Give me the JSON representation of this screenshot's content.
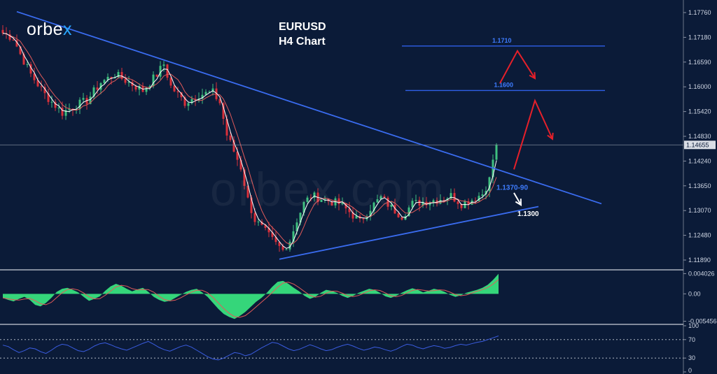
{
  "brand": {
    "logo_prefix": "orbe",
    "logo_suffix": "x",
    "watermark": "orbex.com"
  },
  "title": {
    "line1": "EURUSD",
    "line2": "H4 Chart"
  },
  "colors": {
    "background": "#0b1b38",
    "trendline": "#3a6cf0",
    "level_line": "#2f5fe8",
    "level_label": "#3e7cff",
    "arrow_red": "#e6202a",
    "arrow_white": "#ffffff",
    "candle_up": "#3fbf7f",
    "candle_down": "#d9303a",
    "ma_fast": "#ffffff",
    "ma_slow": "#e05a5a",
    "macd_hist": "#35d67a",
    "rsi_line": "#3a5ce0",
    "axis_text": "#cfd6e4",
    "current_price_line": "#7d8799"
  },
  "chart_data": [
    {
      "type": "line",
      "name": "price",
      "ylim": [
        1.116,
        1.181
      ],
      "y_ticks": [
        "1.17760",
        "1.17180",
        "1.16590",
        "1.16000",
        "1.15420",
        "1.14830",
        "1.14240",
        "1.13650",
        "1.13070",
        "1.12480",
        "1.11890"
      ],
      "current_price": "1.14655",
      "current_price_value": 1.14655,
      "x_points": 142,
      "close_anchors": [
        [
          0,
          1.1742
        ],
        [
          3,
          1.173
        ],
        [
          5,
          1.169
        ],
        [
          8,
          1.164
        ],
        [
          12,
          1.159
        ],
        [
          17,
          1.1545
        ],
        [
          20,
          1.156
        ],
        [
          24,
          1.1575
        ],
        [
          28,
          1.162
        ],
        [
          32,
          1.164
        ],
        [
          35,
          1.1625
        ],
        [
          40,
          1.16
        ],
        [
          44,
          1.164
        ],
        [
          46,
          1.1665
        ],
        [
          48,
          1.161
        ],
        [
          52,
          1.157
        ],
        [
          56,
          1.159
        ],
        [
          60,
          1.1595
        ],
        [
          62,
          1.157
        ],
        [
          64,
          1.149
        ],
        [
          68,
          1.141
        ],
        [
          70,
          1.133
        ],
        [
          72,
          1.128
        ],
        [
          75,
          1.125
        ],
        [
          78,
          1.122
        ],
        [
          80,
          1.1205
        ],
        [
          82,
          1.123
        ],
        [
          84,
          1.128
        ],
        [
          86,
          1.132
        ],
        [
          88,
          1.134
        ],
        [
          92,
          1.133
        ],
        [
          96,
          1.132
        ],
        [
          99,
          1.13
        ],
        [
          102,
          1.1275
        ],
        [
          105,
          1.131
        ],
        [
          108,
          1.1335
        ],
        [
          111,
          1.131
        ],
        [
          114,
          1.129
        ],
        [
          117,
          1.132
        ],
        [
          120,
          1.1325
        ],
        [
          124,
          1.133
        ],
        [
          128,
          1.134
        ],
        [
          131,
          1.132
        ],
        [
          134,
          1.133
        ],
        [
          137,
          1.1345
        ],
        [
          139,
          1.138
        ],
        [
          140,
          1.143
        ],
        [
          141,
          1.1466
        ]
      ],
      "trendlines": [
        {
          "points": [
            [
              4,
              1.1795
            ],
            [
              171,
              1.132
            ]
          ]
        },
        {
          "points": [
            [
              79,
              1.1183
            ],
            [
              153,
              1.1313
            ]
          ]
        }
      ],
      "levels": [
        {
          "label": "1.1710",
          "value": 1.171,
          "x_range": [
            114,
            172
          ]
        },
        {
          "label": "1.1600",
          "value": 1.16,
          "x_range": [
            115,
            172
          ]
        }
      ],
      "annotations": [
        {
          "label": "1.1370-90",
          "value": 1.136,
          "x": 141
        },
        {
          "label": "1.1300",
          "value": 1.1295,
          "x": 147
        }
      ],
      "arrows": [
        {
          "color": "red",
          "points": [
            [
              146,
              1.1405
            ],
            [
              152,
              1.1575
            ],
            [
              157,
              1.148
            ]
          ]
        },
        {
          "color": "red",
          "points": [
            [
              142,
              1.1618
            ],
            [
              147,
              1.1698
            ],
            [
              152,
              1.163
            ]
          ]
        },
        {
          "color": "white",
          "points": [
            [
              146,
              1.1347
            ],
            [
              148,
              1.1317
            ]
          ]
        }
      ]
    },
    {
      "type": "bar",
      "name": "macd",
      "y_ticks": [
        "0.004026",
        "0.00",
        "-0.005456"
      ],
      "ylim": [
        -0.0058,
        0.0045
      ],
      "values": [
        -0.0008,
        -0.0012,
        -0.0015,
        -0.001,
        -0.0006,
        -0.0012,
        -0.0022,
        -0.0025,
        -0.0018,
        -0.0008,
        0.0004,
        0.001,
        0.0012,
        0.0008,
        0.0003,
        -0.0006,
        -0.0014,
        -0.001,
        -0.0005,
        0.0006,
        0.0015,
        0.002,
        0.0016,
        0.001,
        0.0005,
        0.0009,
        0.0012,
        0.0004,
        -0.0006,
        -0.0012,
        -0.0016,
        -0.0014,
        -0.0008,
        -0.0002,
        0.0004,
        0.0008,
        0.001,
        0.0003,
        -0.0006,
        -0.0018,
        -0.003,
        -0.004,
        -0.0046,
        -0.005,
        -0.0044,
        -0.0036,
        -0.0026,
        -0.0016,
        -0.0008,
        0.0002,
        0.0014,
        0.0024,
        0.0026,
        0.002,
        0.0012,
        0.0005,
        -0.0004,
        -0.001,
        -0.0006,
        0.0002,
        0.0008,
        0.0006,
        0.0002,
        -0.0004,
        -0.0008,
        -0.0004,
        0.0002,
        0.0006,
        0.001,
        0.0008,
        0.0002,
        -0.0005,
        -0.0008,
        -0.0004,
        0.0002,
        0.0007,
        0.0011,
        0.0008,
        0.0003,
        0.0006,
        0.001,
        0.0008,
        0.0004,
        -0.0002,
        -0.0006,
        -0.0003,
        0.0002,
        0.0005,
        0.0008,
        0.0012,
        0.0018,
        0.0028,
        0.004
      ]
    },
    {
      "type": "line",
      "name": "rsi",
      "y_ticks": [
        "100",
        "70",
        "30",
        "0"
      ],
      "ylim": [
        0,
        100
      ],
      "levels": [
        70,
        30
      ],
      "values": [
        58,
        55,
        48,
        42,
        46,
        52,
        50,
        44,
        40,
        47,
        55,
        60,
        58,
        52,
        46,
        44,
        49,
        56,
        61,
        63,
        59,
        54,
        50,
        47,
        52,
        57,
        62,
        66,
        60,
        53,
        48,
        45,
        50,
        55,
        58,
        54,
        47,
        40,
        33,
        28,
        26,
        30,
        36,
        42,
        40,
        35,
        38,
        45,
        52,
        58,
        64,
        62,
        56,
        50,
        46,
        49,
        54,
        59,
        55,
        50,
        46,
        48,
        53,
        57,
        60,
        56,
        51,
        47,
        50,
        54,
        52,
        48,
        45,
        49,
        55,
        60,
        58,
        53,
        50,
        54,
        57,
        55,
        51,
        53,
        57,
        60,
        58,
        61,
        64,
        66,
        70,
        74,
        78
      ]
    }
  ]
}
